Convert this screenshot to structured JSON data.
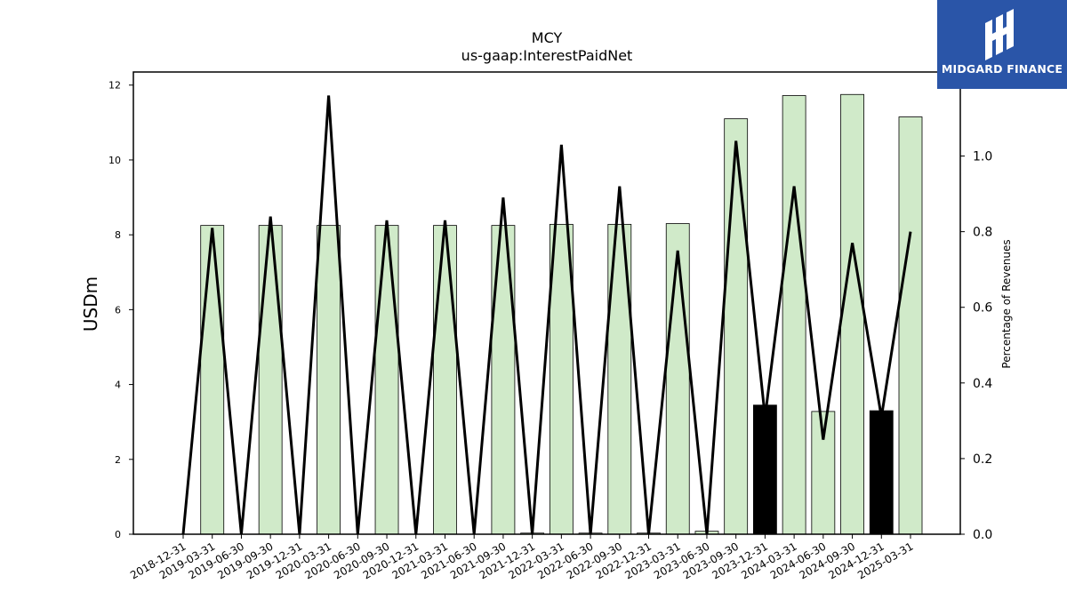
{
  "chart_data": {
    "type": "bar",
    "title": "MCY",
    "subtitle": "us-gaap:InterestPaidNet",
    "ylabel": "USDm",
    "y2label": "Percentage of Revenues",
    "ylim": [
      0,
      12.35
    ],
    "y2lim": [
      0,
      1.2222
    ],
    "yticks": [
      0,
      2,
      4,
      6,
      8,
      10,
      12
    ],
    "y2ticks": [
      "0.0",
      "0.2",
      "0.4",
      "0.6",
      "0.8",
      "1.0"
    ],
    "categories": [
      "2018-12-31",
      "2019-03-31",
      "2019-06-30",
      "2019-09-30",
      "2019-12-31",
      "2020-03-31",
      "2020-06-30",
      "2020-09-30",
      "2020-12-31",
      "2021-03-31",
      "2021-06-30",
      "2021-09-30",
      "2021-12-31",
      "2022-03-31",
      "2022-06-30",
      "2022-09-30",
      "2022-12-31",
      "2023-03-31",
      "2023-06-30",
      "2023-09-30",
      "2023-12-31",
      "2024-03-31",
      "2024-06-30",
      "2024-09-30",
      "2024-12-31",
      "2025-03-31"
    ],
    "values": [
      0,
      8.25,
      0,
      8.25,
      0,
      8.25,
      0,
      8.25,
      0,
      8.25,
      0,
      8.25,
      0.03,
      8.28,
      0.03,
      8.28,
      0.03,
      8.3,
      0.08,
      11.1,
      3.45,
      11.72,
      3.28,
      11.75,
      3.3,
      11.15
    ],
    "bar_colors": [
      "#d0eac9",
      "#d0eac9",
      "#d0eac9",
      "#d0eac9",
      "#d0eac9",
      "#d0eac9",
      "#d0eac9",
      "#d0eac9",
      "#d0eac9",
      "#d0eac9",
      "#d0eac9",
      "#d0eac9",
      "#d0eac9",
      "#d0eac9",
      "#d0eac9",
      "#d0eac9",
      "#d0eac9",
      "#d0eac9",
      "#d0eac9",
      "#d0eac9",
      "#000000",
      "#d0eac9",
      "#d0eac9",
      "#d0eac9",
      "#000000",
      "#d0eac9"
    ],
    "pct_revenues": [
      0,
      0.81,
      0,
      0.84,
      0,
      1.16,
      0,
      0.83,
      0,
      0.83,
      0,
      0.89,
      0,
      1.03,
      0,
      0.92,
      0,
      0.75,
      0,
      1.04,
      0.31,
      0.92,
      0.25,
      0.77,
      0.31,
      0.8
    ],
    "colors": {
      "bar": "#d0eac9",
      "bar_highlight": "#000000",
      "line": "#000000"
    },
    "grid": false
  },
  "logo": {
    "text": "MIDGARD FINANCE",
    "bg": "#2a55a8"
  }
}
